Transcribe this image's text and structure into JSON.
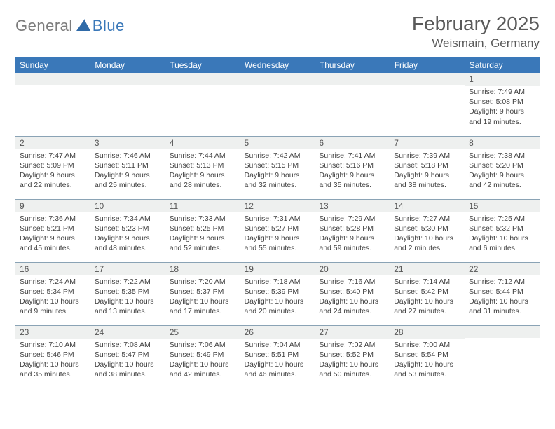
{
  "brand": {
    "part1": "General",
    "part2": "Blue"
  },
  "header": {
    "title": "February 2025",
    "location": "Weismain, Germany"
  },
  "colors": {
    "header_bg": "#3a78b9",
    "daybar_bg": "#eef0ef",
    "border": "#8aa3b5",
    "text": "#333333",
    "logo_gray": "#7d7d7d",
    "logo_blue": "#3a78b9"
  },
  "weekdays": [
    "Sunday",
    "Monday",
    "Tuesday",
    "Wednesday",
    "Thursday",
    "Friday",
    "Saturday"
  ],
  "weeks": [
    [
      {
        "n": "",
        "sr": "",
        "ss": "",
        "dl1": "",
        "dl2": ""
      },
      {
        "n": "",
        "sr": "",
        "ss": "",
        "dl1": "",
        "dl2": ""
      },
      {
        "n": "",
        "sr": "",
        "ss": "",
        "dl1": "",
        "dl2": ""
      },
      {
        "n": "",
        "sr": "",
        "ss": "",
        "dl1": "",
        "dl2": ""
      },
      {
        "n": "",
        "sr": "",
        "ss": "",
        "dl1": "",
        "dl2": ""
      },
      {
        "n": "",
        "sr": "",
        "ss": "",
        "dl1": "",
        "dl2": ""
      },
      {
        "n": "1",
        "sr": "Sunrise: 7:49 AM",
        "ss": "Sunset: 5:08 PM",
        "dl1": "Daylight: 9 hours",
        "dl2": "and 19 minutes."
      }
    ],
    [
      {
        "n": "2",
        "sr": "Sunrise: 7:47 AM",
        "ss": "Sunset: 5:09 PM",
        "dl1": "Daylight: 9 hours",
        "dl2": "and 22 minutes."
      },
      {
        "n": "3",
        "sr": "Sunrise: 7:46 AM",
        "ss": "Sunset: 5:11 PM",
        "dl1": "Daylight: 9 hours",
        "dl2": "and 25 minutes."
      },
      {
        "n": "4",
        "sr": "Sunrise: 7:44 AM",
        "ss": "Sunset: 5:13 PM",
        "dl1": "Daylight: 9 hours",
        "dl2": "and 28 minutes."
      },
      {
        "n": "5",
        "sr": "Sunrise: 7:42 AM",
        "ss": "Sunset: 5:15 PM",
        "dl1": "Daylight: 9 hours",
        "dl2": "and 32 minutes."
      },
      {
        "n": "6",
        "sr": "Sunrise: 7:41 AM",
        "ss": "Sunset: 5:16 PM",
        "dl1": "Daylight: 9 hours",
        "dl2": "and 35 minutes."
      },
      {
        "n": "7",
        "sr": "Sunrise: 7:39 AM",
        "ss": "Sunset: 5:18 PM",
        "dl1": "Daylight: 9 hours",
        "dl2": "and 38 minutes."
      },
      {
        "n": "8",
        "sr": "Sunrise: 7:38 AM",
        "ss": "Sunset: 5:20 PM",
        "dl1": "Daylight: 9 hours",
        "dl2": "and 42 minutes."
      }
    ],
    [
      {
        "n": "9",
        "sr": "Sunrise: 7:36 AM",
        "ss": "Sunset: 5:21 PM",
        "dl1": "Daylight: 9 hours",
        "dl2": "and 45 minutes."
      },
      {
        "n": "10",
        "sr": "Sunrise: 7:34 AM",
        "ss": "Sunset: 5:23 PM",
        "dl1": "Daylight: 9 hours",
        "dl2": "and 48 minutes."
      },
      {
        "n": "11",
        "sr": "Sunrise: 7:33 AM",
        "ss": "Sunset: 5:25 PM",
        "dl1": "Daylight: 9 hours",
        "dl2": "and 52 minutes."
      },
      {
        "n": "12",
        "sr": "Sunrise: 7:31 AM",
        "ss": "Sunset: 5:27 PM",
        "dl1": "Daylight: 9 hours",
        "dl2": "and 55 minutes."
      },
      {
        "n": "13",
        "sr": "Sunrise: 7:29 AM",
        "ss": "Sunset: 5:28 PM",
        "dl1": "Daylight: 9 hours",
        "dl2": "and 59 minutes."
      },
      {
        "n": "14",
        "sr": "Sunrise: 7:27 AM",
        "ss": "Sunset: 5:30 PM",
        "dl1": "Daylight: 10 hours",
        "dl2": "and 2 minutes."
      },
      {
        "n": "15",
        "sr": "Sunrise: 7:25 AM",
        "ss": "Sunset: 5:32 PM",
        "dl1": "Daylight: 10 hours",
        "dl2": "and 6 minutes."
      }
    ],
    [
      {
        "n": "16",
        "sr": "Sunrise: 7:24 AM",
        "ss": "Sunset: 5:34 PM",
        "dl1": "Daylight: 10 hours",
        "dl2": "and 9 minutes."
      },
      {
        "n": "17",
        "sr": "Sunrise: 7:22 AM",
        "ss": "Sunset: 5:35 PM",
        "dl1": "Daylight: 10 hours",
        "dl2": "and 13 minutes."
      },
      {
        "n": "18",
        "sr": "Sunrise: 7:20 AM",
        "ss": "Sunset: 5:37 PM",
        "dl1": "Daylight: 10 hours",
        "dl2": "and 17 minutes."
      },
      {
        "n": "19",
        "sr": "Sunrise: 7:18 AM",
        "ss": "Sunset: 5:39 PM",
        "dl1": "Daylight: 10 hours",
        "dl2": "and 20 minutes."
      },
      {
        "n": "20",
        "sr": "Sunrise: 7:16 AM",
        "ss": "Sunset: 5:40 PM",
        "dl1": "Daylight: 10 hours",
        "dl2": "and 24 minutes."
      },
      {
        "n": "21",
        "sr": "Sunrise: 7:14 AM",
        "ss": "Sunset: 5:42 PM",
        "dl1": "Daylight: 10 hours",
        "dl2": "and 27 minutes."
      },
      {
        "n": "22",
        "sr": "Sunrise: 7:12 AM",
        "ss": "Sunset: 5:44 PM",
        "dl1": "Daylight: 10 hours",
        "dl2": "and 31 minutes."
      }
    ],
    [
      {
        "n": "23",
        "sr": "Sunrise: 7:10 AM",
        "ss": "Sunset: 5:46 PM",
        "dl1": "Daylight: 10 hours",
        "dl2": "and 35 minutes."
      },
      {
        "n": "24",
        "sr": "Sunrise: 7:08 AM",
        "ss": "Sunset: 5:47 PM",
        "dl1": "Daylight: 10 hours",
        "dl2": "and 38 minutes."
      },
      {
        "n": "25",
        "sr": "Sunrise: 7:06 AM",
        "ss": "Sunset: 5:49 PM",
        "dl1": "Daylight: 10 hours",
        "dl2": "and 42 minutes."
      },
      {
        "n": "26",
        "sr": "Sunrise: 7:04 AM",
        "ss": "Sunset: 5:51 PM",
        "dl1": "Daylight: 10 hours",
        "dl2": "and 46 minutes."
      },
      {
        "n": "27",
        "sr": "Sunrise: 7:02 AM",
        "ss": "Sunset: 5:52 PM",
        "dl1": "Daylight: 10 hours",
        "dl2": "and 50 minutes."
      },
      {
        "n": "28",
        "sr": "Sunrise: 7:00 AM",
        "ss": "Sunset: 5:54 PM",
        "dl1": "Daylight: 10 hours",
        "dl2": "and 53 minutes."
      },
      {
        "n": "",
        "sr": "",
        "ss": "",
        "dl1": "",
        "dl2": ""
      }
    ]
  ]
}
